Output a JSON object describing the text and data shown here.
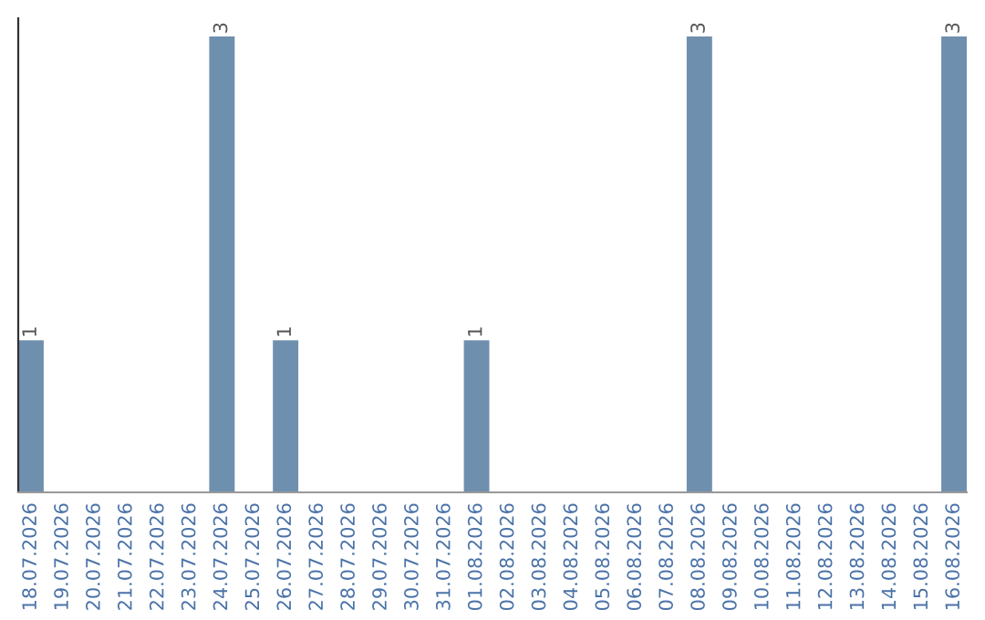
{
  "chart_data": {
    "type": "bar",
    "categories": [
      "18.07.2026",
      "19.07.2026",
      "20.07.2026",
      "21.07.2026",
      "22.07.2026",
      "23.07.2026",
      "24.07.2026",
      "25.07.2026",
      "26.07.2026",
      "27.07.2026",
      "28.07.2026",
      "29.07.2026",
      "30.07.2026",
      "31.07.2026",
      "01.08.2026",
      "02.08.2026",
      "03.08.2026",
      "04.08.2026",
      "05.08.2026",
      "06.08.2026",
      "07.08.2026",
      "08.08.2026",
      "09.08.2026",
      "10.08.2026",
      "11.08.2026",
      "12.08.2026",
      "13.08.2026",
      "14.08.2026",
      "15.08.2026",
      "16.08.2026"
    ],
    "values": [
      1,
      0,
      0,
      0,
      0,
      0,
      3,
      0,
      1,
      0,
      0,
      0,
      0,
      0,
      1,
      0,
      0,
      0,
      0,
      0,
      0,
      3,
      0,
      0,
      0,
      0,
      0,
      0,
      0,
      3
    ],
    "value_labels": [
      "1",
      null,
      null,
      null,
      null,
      null,
      "3",
      null,
      "1",
      null,
      null,
      null,
      null,
      null,
      "1",
      null,
      null,
      null,
      null,
      null,
      null,
      "3",
      null,
      null,
      null,
      null,
      null,
      null,
      null,
      "3"
    ],
    "color": "#6f8fae",
    "tick_labels": "x",
    "grid": false,
    "legend": false
  }
}
